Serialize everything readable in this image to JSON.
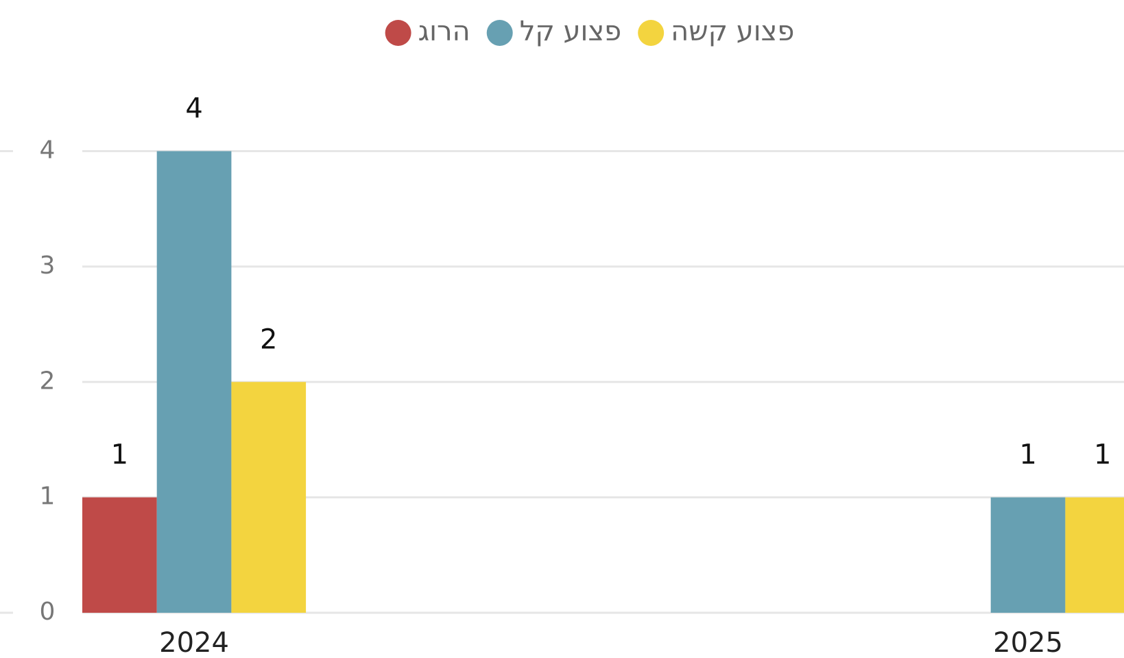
{
  "chart_data": {
    "type": "bar",
    "categories": [
      "2024",
      "2025"
    ],
    "series": [
      {
        "name": "הרוג",
        "color": "#bf4a48",
        "values": [
          1,
          null
        ]
      },
      {
        "name": "פצוע קל",
        "color": "#67a0b2",
        "values": [
          4,
          1
        ]
      },
      {
        "name": "פצוע קשה",
        "color": "#f3d43f",
        "values": [
          2,
          1
        ]
      }
    ],
    "ylim": [
      0,
      4
    ],
    "yticks": [
      0,
      1,
      2,
      3,
      4
    ],
    "grid": true,
    "legend": "top"
  }
}
